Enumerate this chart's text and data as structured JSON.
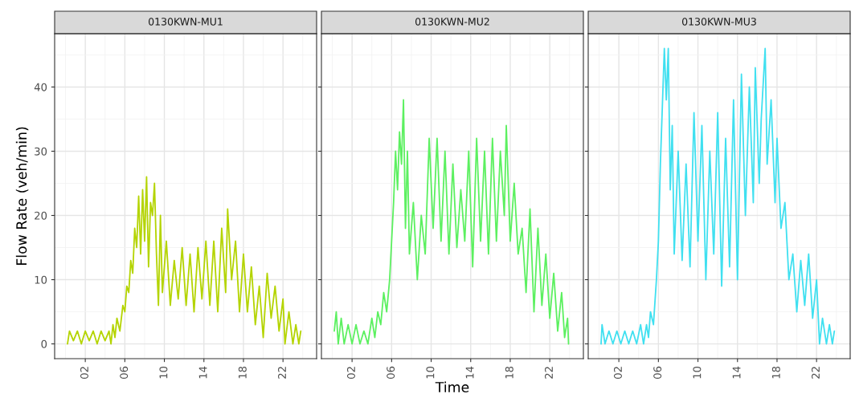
{
  "chart_data": [
    {
      "type": "line",
      "title": "0130KWN-MU1",
      "ylabel": "Flow Rate (veh/min)",
      "grid": true,
      "line_style": "solid",
      "marker": "none",
      "xlim": [
        -1.1,
        25.4
      ],
      "ylim": [
        -2.3,
        48.3
      ],
      "xticks": [
        {
          "value": 2,
          "label": "02"
        },
        {
          "value": 6,
          "label": "06"
        },
        {
          "value": 10,
          "label": "10"
        },
        {
          "value": 14,
          "label": "14"
        },
        {
          "value": 18,
          "label": "18"
        },
        {
          "value": 22,
          "label": "22"
        }
      ],
      "yticks": [
        0,
        10,
        20,
        30,
        40
      ],
      "series": [
        {
          "color": "#b4d400",
          "x": [
            0.2,
            0.4,
            0.8,
            1.2,
            1.6,
            2.0,
            2.4,
            2.8,
            3.2,
            3.6,
            4.0,
            4.4,
            4.6,
            4.8,
            5.0,
            5.2,
            5.5,
            5.8,
            6.0,
            6.2,
            6.4,
            6.6,
            6.8,
            7.0,
            7.2,
            7.4,
            7.6,
            7.8,
            8.0,
            8.2,
            8.4,
            8.6,
            8.8,
            9.0,
            9.2,
            9.4,
            9.6,
            9.8,
            10.2,
            10.6,
            11.0,
            11.4,
            11.8,
            12.2,
            12.6,
            13.0,
            13.4,
            13.8,
            14.2,
            14.6,
            15.0,
            15.4,
            15.8,
            16.2,
            16.4,
            16.8,
            17.2,
            17.6,
            18.0,
            18.4,
            18.8,
            19.2,
            19.6,
            20.0,
            20.4,
            20.8,
            21.2,
            21.6,
            22.0,
            22.2,
            22.6,
            23.0,
            23.3,
            23.6,
            23.8
          ],
          "values": [
            0,
            2,
            0.5,
            2,
            0,
            2,
            0.5,
            2,
            0,
            2,
            0.5,
            2,
            0,
            3,
            1,
            4,
            2,
            6,
            5,
            9,
            8,
            13,
            11,
            18,
            15,
            23,
            14,
            24,
            16,
            26,
            12,
            22,
            20,
            25,
            14,
            6,
            20,
            8,
            16,
            6,
            13,
            7,
            15,
            6,
            14,
            5,
            15,
            7,
            16,
            6,
            16,
            5,
            18,
            8,
            21,
            10,
            16,
            5,
            14,
            5,
            12,
            3,
            9,
            1,
            11,
            4,
            9,
            2,
            7,
            0,
            5,
            0,
            3,
            0,
            2
          ]
        }
      ]
    },
    {
      "type": "line",
      "title": "0130KWN-MU2",
      "xlabel": "Time",
      "grid": true,
      "line_style": "solid",
      "marker": "none",
      "tick_labels": "x",
      "xlim": [
        -1.1,
        25.4
      ],
      "ylim": [
        -2.3,
        48.3
      ],
      "xticks": [
        {
          "value": 2,
          "label": "02"
        },
        {
          "value": 6,
          "label": "06"
        },
        {
          "value": 10,
          "label": "10"
        },
        {
          "value": 14,
          "label": "14"
        },
        {
          "value": 18,
          "label": "18"
        },
        {
          "value": 22,
          "label": "22"
        }
      ],
      "yticks": [
        0,
        10,
        20,
        30,
        40
      ],
      "series": [
        {
          "color": "#5cf060",
          "x": [
            0.2,
            0.4,
            0.6,
            0.9,
            1.2,
            1.6,
            2.0,
            2.4,
            2.8,
            3.2,
            3.6,
            4.0,
            4.3,
            4.6,
            4.9,
            5.2,
            5.5,
            5.8,
            6.0,
            6.2,
            6.4,
            6.6,
            6.8,
            7.0,
            7.2,
            7.4,
            7.6,
            7.8,
            8.2,
            8.6,
            9.0,
            9.4,
            9.8,
            10.2,
            10.6,
            11.0,
            11.4,
            11.8,
            12.2,
            12.6,
            13.0,
            13.4,
            13.8,
            14.2,
            14.6,
            15.0,
            15.4,
            15.8,
            16.2,
            16.6,
            17.0,
            17.4,
            17.6,
            18.0,
            18.4,
            18.8,
            19.2,
            19.6,
            20.0,
            20.4,
            20.8,
            21.2,
            21.6,
            22.0,
            22.4,
            22.8,
            23.2,
            23.5,
            23.8,
            23.9
          ],
          "values": [
            2,
            5,
            0,
            4,
            0,
            3,
            0,
            3,
            0,
            2,
            0,
            4,
            1,
            5,
            3,
            8,
            5,
            10,
            16,
            22,
            30,
            24,
            33,
            28,
            38,
            18,
            30,
            14,
            22,
            10,
            20,
            14,
            32,
            18,
            32,
            16,
            30,
            14,
            28,
            15,
            24,
            16,
            30,
            12,
            32,
            16,
            30,
            14,
            32,
            16,
            30,
            20,
            34,
            16,
            25,
            14,
            18,
            8,
            21,
            5,
            18,
            6,
            14,
            4,
            11,
            2,
            8,
            1,
            4,
            0
          ]
        }
      ]
    },
    {
      "type": "line",
      "title": "0130KWN-MU3",
      "grid": true,
      "line_style": "solid",
      "marker": "none",
      "tick_labels": "x",
      "xlim": [
        -1.1,
        25.4
      ],
      "ylim": [
        -2.3,
        48.3
      ],
      "xticks": [
        {
          "value": 2,
          "label": "02"
        },
        {
          "value": 6,
          "label": "06"
        },
        {
          "value": 10,
          "label": "10"
        },
        {
          "value": 14,
          "label": "14"
        },
        {
          "value": 18,
          "label": "18"
        },
        {
          "value": 22,
          "label": "22"
        }
      ],
      "yticks": [
        0,
        10,
        20,
        30,
        40
      ],
      "series": [
        {
          "color": "#40e0f0",
          "x": [
            0.2,
            0.3,
            0.6,
            1.0,
            1.4,
            1.8,
            2.2,
            2.6,
            3.0,
            3.4,
            3.8,
            4.2,
            4.5,
            4.8,
            5.0,
            5.2,
            5.5,
            5.8,
            6.0,
            6.2,
            6.4,
            6.6,
            6.8,
            7.0,
            7.2,
            7.4,
            7.6,
            8.0,
            8.4,
            8.8,
            9.2,
            9.6,
            10.0,
            10.4,
            10.8,
            11.2,
            11.6,
            12.0,
            12.4,
            12.8,
            13.2,
            13.6,
            14.0,
            14.4,
            14.8,
            15.2,
            15.6,
            15.8,
            16.2,
            16.4,
            16.8,
            17.0,
            17.4,
            17.8,
            18.0,
            18.4,
            18.8,
            19.2,
            19.6,
            20.0,
            20.4,
            20.8,
            21.2,
            21.6,
            22.0,
            22.3,
            22.6,
            23.0,
            23.3,
            23.6,
            23.8
          ],
          "values": [
            0,
            3,
            0,
            2,
            0,
            2,
            0,
            2,
            0,
            2,
            0,
            3,
            0,
            3,
            1,
            5,
            3,
            10,
            16,
            28,
            37,
            46,
            38,
            46,
            24,
            34,
            14,
            30,
            13,
            28,
            12,
            36,
            16,
            34,
            10,
            30,
            14,
            36,
            9,
            32,
            12,
            38,
            10,
            42,
            20,
            40,
            22,
            43,
            25,
            35,
            46,
            28,
            38,
            22,
            32,
            18,
            22,
            10,
            14,
            5,
            13,
            6,
            14,
            4,
            10,
            0,
            4,
            0,
            3,
            0,
            2
          ]
        }
      ]
    }
  ]
}
